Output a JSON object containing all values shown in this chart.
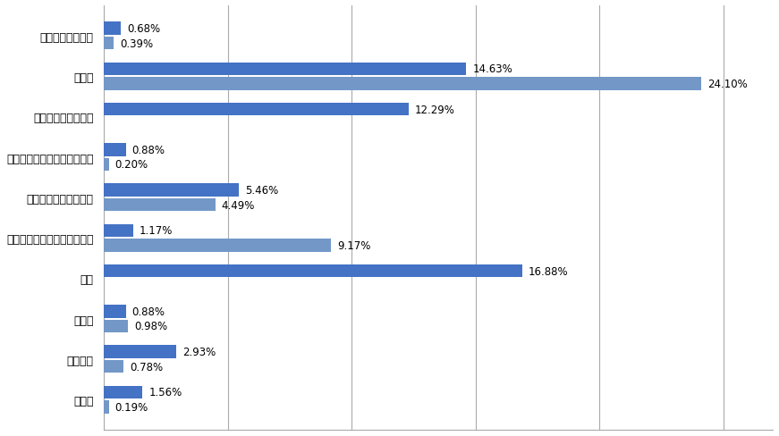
{
  "categories": [
    "租赁和商务服务业",
    "制造业",
    "文化、体育和娱乐业",
    "水利、环境和公共设施管理业",
    "科学研究和技术服务业",
    "居民服务、修理和其他服务业",
    "教育",
    "建筑业",
    "房地产业",
    "采矿业"
  ],
  "values_top": [
    0.68,
    14.63,
    12.29,
    0.88,
    5.46,
    1.17,
    16.88,
    0.88,
    2.93,
    1.56
  ],
  "values_bot": [
    0.39,
    24.1,
    0.0,
    0.2,
    4.49,
    9.17,
    0.0,
    0.98,
    0.78,
    0.19
  ],
  "labels_top": [
    "0.68%",
    "14.63%",
    "12.29%",
    "0.88%",
    "5.46%",
    "1.17%",
    "16.88%",
    "0.88%",
    "2.93%",
    "1.56%"
  ],
  "labels_bot": [
    "0.39%",
    "24.10%",
    "",
    "0.20%",
    "4.49%",
    "9.17%",
    "",
    "0.98%",
    "0.78%",
    "0.19%"
  ],
  "color_top": "#4472C4",
  "color_bot": "#7398C8",
  "bar_height": 0.32,
  "xlim": [
    0,
    27
  ],
  "figsize": [
    8.71,
    4.89
  ],
  "dpi": 100,
  "bg_color": "#FFFFFF",
  "grid_color": "#AAAAAA",
  "font_size": 9,
  "label_font_size": 8.5
}
